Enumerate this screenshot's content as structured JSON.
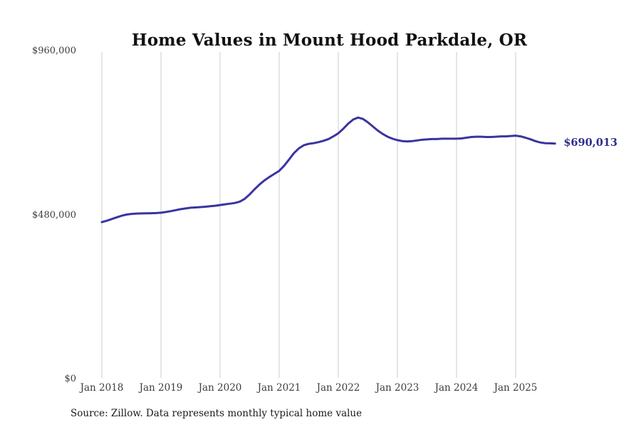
{
  "title": "Home Values in Mount Hood Parkdale, OR",
  "source_note": "Source: Zillow. Data represents monthly typical home value",
  "chart_data": {
    "type": "line",
    "title": "Home Values in Mount Hood Parkdale, OR",
    "xlabel": "",
    "ylabel": "",
    "ylim": [
      0,
      960000
    ],
    "grid": "vertical-only",
    "legend": "none",
    "line_color": "#3a34a0",
    "grid_color": "#cccccc",
    "end_label": "$690,013",
    "end_label_color": "#2d2d91",
    "start_month": "2018-01",
    "frequency": "monthly",
    "x_tick_labels": [
      "Jan 2018",
      "Jan 2019",
      "Jan 2020",
      "Jan 2021",
      "Jan 2022",
      "Jan 2023",
      "Jan 2024",
      "Jan 2025"
    ],
    "x_tick_month_indices": [
      0,
      12,
      24,
      36,
      48,
      60,
      72,
      84
    ],
    "y_ticks": [
      {
        "label": "$960,000",
        "value": 960000
      },
      {
        "label": "$480,000",
        "value": 480000
      },
      {
        "label": "$0",
        "value": 0
      }
    ],
    "values": [
      460000,
      464000,
      469000,
      474000,
      478500,
      482000,
      484000,
      485000,
      485500,
      485800,
      486000,
      486500,
      487500,
      489500,
      492000,
      495000,
      498000,
      500000,
      502000,
      503000,
      504000,
      505000,
      506500,
      508000,
      510000,
      512000,
      514000,
      516000,
      520000,
      528000,
      541000,
      556000,
      570000,
      582000,
      592000,
      601000,
      610000,
      625000,
      643000,
      662000,
      676000,
      685000,
      689000,
      691000,
      694000,
      698000,
      703000,
      711000,
      720000,
      733000,
      748000,
      760000,
      766000,
      762000,
      752000,
      740000,
      728000,
      718000,
      710000,
      704000,
      700000,
      697000,
      696000,
      697000,
      699000,
      701000,
      702000,
      703000,
      703000,
      704000,
      704000,
      704000,
      704000,
      705000,
      707000,
      709000,
      710000,
      710000,
      709000,
      709000,
      710000,
      711000,
      711000,
      712000,
      713000,
      711000,
      707000,
      702500,
      697000,
      693000,
      691000,
      690500,
      690013
    ]
  }
}
